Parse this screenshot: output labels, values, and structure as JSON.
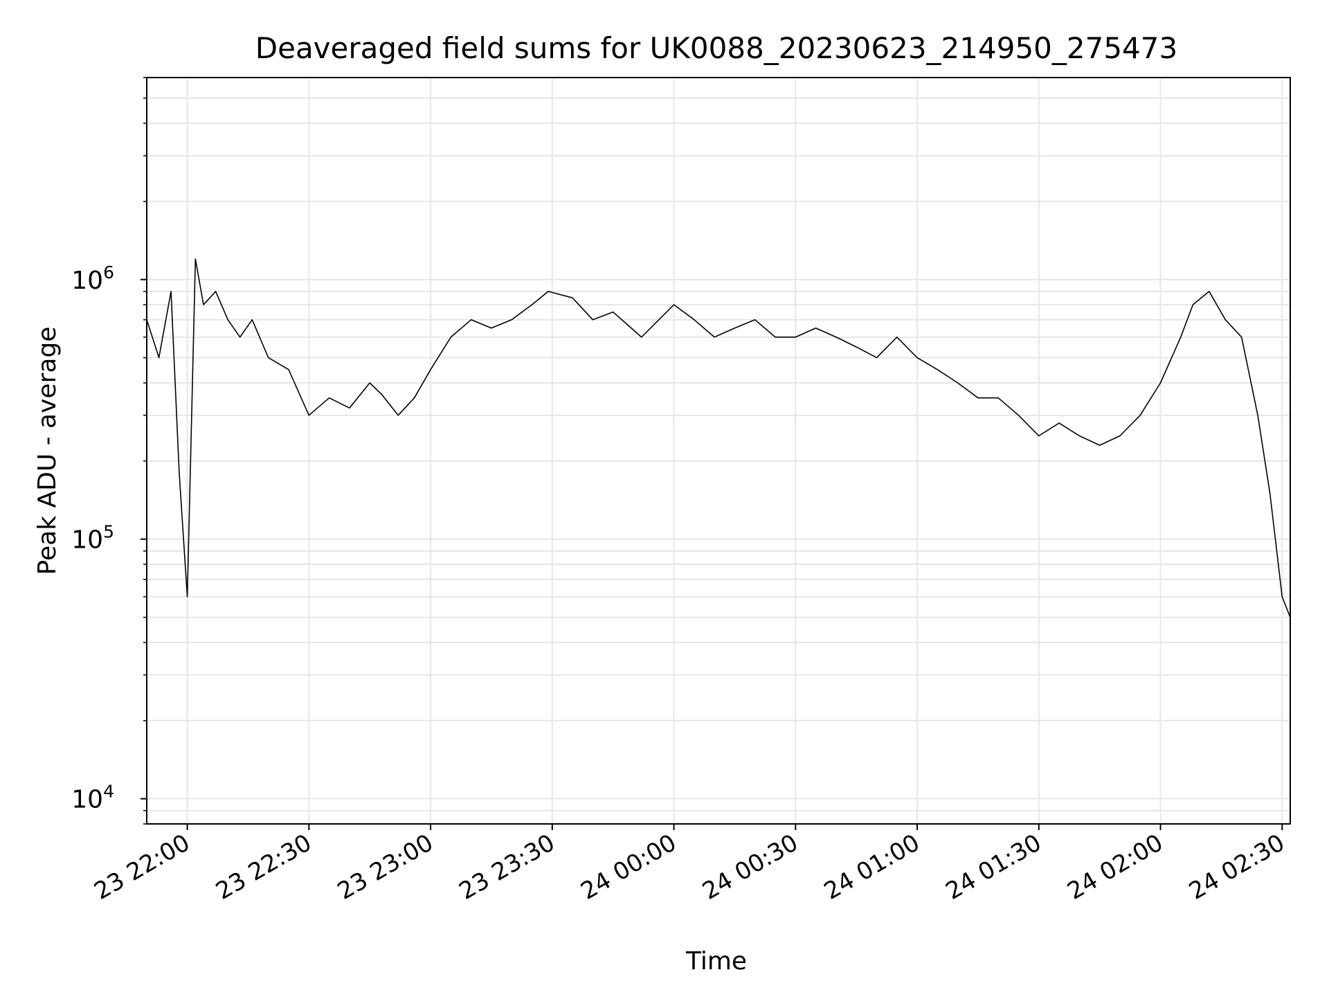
{
  "chart_data": {
    "type": "line",
    "title": "Deaveraged field sums for UK0088_20230623_214950_275473",
    "xlabel": "Time",
    "ylabel": "Peak ADU - average",
    "yscale": "log",
    "ylim": [
      8000,
      6000000
    ],
    "xlim": [
      "2023-06-23 21:50",
      "2023-06-24 02:32"
    ],
    "x_ticks": [
      {
        "label": "23 22:00",
        "value": "2023-06-23 22:00"
      },
      {
        "label": "23 22:30",
        "value": "2023-06-23 22:30"
      },
      {
        "label": "23 23:00",
        "value": "2023-06-23 23:00"
      },
      {
        "label": "23 23:30",
        "value": "2023-06-23 23:30"
      },
      {
        "label": "24 00:00",
        "value": "2023-06-24 00:00"
      },
      {
        "label": "24 00:30",
        "value": "2023-06-24 00:30"
      },
      {
        "label": "24 01:00",
        "value": "2023-06-24 01:00"
      },
      {
        "label": "24 01:30",
        "value": "2023-06-24 01:30"
      },
      {
        "label": "24 02:00",
        "value": "2023-06-24 02:00"
      },
      {
        "label": "24 02:30",
        "value": "2023-06-24 02:30"
      }
    ],
    "y_ticks": [
      {
        "base": "10",
        "exp": "4",
        "value": 10000
      },
      {
        "base": "10",
        "exp": "5",
        "value": 100000
      },
      {
        "base": "10",
        "exp": "6",
        "value": 1000000
      }
    ],
    "grid": true,
    "line_color": "#000000",
    "grid_color": "#e6e6e6",
    "series": [
      {
        "x": [
          "2023-06-23 21:50",
          "2023-06-23 21:53",
          "2023-06-23 21:56",
          "2023-06-23 21:58",
          "2023-06-23 22:00",
          "2023-06-23 22:02",
          "2023-06-23 22:04",
          "2023-06-23 22:07",
          "2023-06-23 22:10",
          "2023-06-23 22:13",
          "2023-06-23 22:16",
          "2023-06-23 22:20",
          "2023-06-23 22:25",
          "2023-06-23 22:30",
          "2023-06-23 22:35",
          "2023-06-23 22:40",
          "2023-06-23 22:45",
          "2023-06-23 22:48",
          "2023-06-23 22:52",
          "2023-06-23 22:56",
          "2023-06-23 23:00",
          "2023-06-23 23:05",
          "2023-06-23 23:10",
          "2023-06-23 23:15",
          "2023-06-23 23:20",
          "2023-06-23 23:25",
          "2023-06-23 23:29",
          "2023-06-23 23:35",
          "2023-06-23 23:40",
          "2023-06-23 23:45",
          "2023-06-23 23:52",
          "2023-06-24 00:00",
          "2023-06-24 00:05",
          "2023-06-24 00:10",
          "2023-06-24 00:15",
          "2023-06-24 00:20",
          "2023-06-24 00:25",
          "2023-06-24 00:30",
          "2023-06-24 00:35",
          "2023-06-24 00:40",
          "2023-06-24 00:45",
          "2023-06-24 00:50",
          "2023-06-24 00:55",
          "2023-06-24 01:00",
          "2023-06-24 01:05",
          "2023-06-24 01:10",
          "2023-06-24 01:15",
          "2023-06-24 01:20",
          "2023-06-24 01:25",
          "2023-06-24 01:30",
          "2023-06-24 01:35",
          "2023-06-24 01:40",
          "2023-06-24 01:45",
          "2023-06-24 01:50",
          "2023-06-24 01:55",
          "2023-06-24 02:00",
          "2023-06-24 02:05",
          "2023-06-24 02:08",
          "2023-06-24 02:12",
          "2023-06-24 02:16",
          "2023-06-24 02:20",
          "2023-06-24 02:24",
          "2023-06-24 02:27",
          "2023-06-24 02:30",
          "2023-06-24 02:32"
        ],
        "y": [
          700000,
          500000,
          900000,
          180000,
          60000,
          1200000,
          800000,
          900000,
          700000,
          600000,
          700000,
          500000,
          450000,
          300000,
          350000,
          320000,
          400000,
          360000,
          300000,
          350000,
          450000,
          600000,
          700000,
          650000,
          700000,
          800000,
          900000,
          850000,
          700000,
          750000,
          600000,
          800000,
          700000,
          600000,
          650000,
          700000,
          600000,
          600000,
          650000,
          600000,
          550000,
          500000,
          600000,
          500000,
          450000,
          400000,
          350000,
          350000,
          300000,
          250000,
          280000,
          250000,
          230000,
          250000,
          300000,
          400000,
          600000,
          800000,
          900000,
          700000,
          600000,
          300000,
          150000,
          60000,
          50000
        ]
      }
    ]
  }
}
